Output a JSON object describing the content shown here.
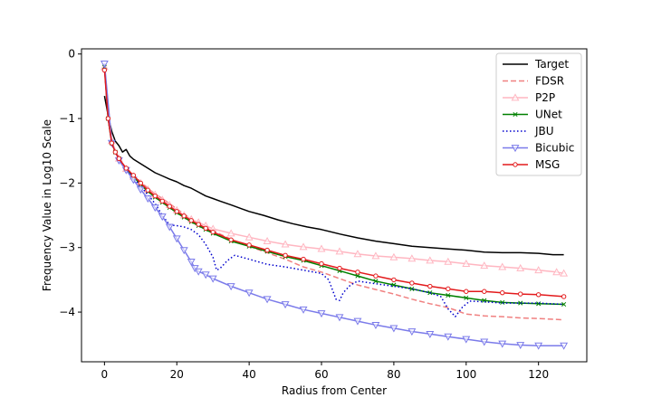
{
  "chart_data": {
    "type": "line",
    "title": "",
    "xlabel": "Radius from Center",
    "ylabel": "Frequency Value in Log10 Scale",
    "xlim": [
      -6.35,
      133.35
    ],
    "ylim": [
      -4.77,
      0.08
    ],
    "xticks": [
      0,
      20,
      40,
      60,
      80,
      100,
      120
    ],
    "xtick_labels": [
      "0",
      "20",
      "40",
      "60",
      "80",
      "100",
      "120"
    ],
    "yticks": [
      0,
      -1,
      -2,
      -3,
      -4
    ],
    "ytick_labels": [
      "0",
      "−1",
      "−2",
      "−3",
      "−4"
    ],
    "grid": false,
    "legend": "top-right",
    "series": [
      {
        "name": "Target",
        "color": "#000000",
        "style": "solid",
        "marker": "none",
        "points": [
          [
            0,
            -0.65
          ],
          [
            1,
            -0.95
          ],
          [
            2,
            -1.2
          ],
          [
            3,
            -1.35
          ],
          [
            4,
            -1.42
          ],
          [
            5,
            -1.52
          ],
          [
            6,
            -1.48
          ],
          [
            7,
            -1.58
          ],
          [
            8,
            -1.63
          ],
          [
            10,
            -1.7
          ],
          [
            12,
            -1.77
          ],
          [
            14,
            -1.84
          ],
          [
            16,
            -1.89
          ],
          [
            18,
            -1.94
          ],
          [
            20,
            -1.98
          ],
          [
            22,
            -2.04
          ],
          [
            24,
            -2.08
          ],
          [
            26,
            -2.14
          ],
          [
            28,
            -2.2
          ],
          [
            30,
            -2.24
          ],
          [
            32,
            -2.28
          ],
          [
            35,
            -2.34
          ],
          [
            38,
            -2.4
          ],
          [
            40,
            -2.44
          ],
          [
            44,
            -2.5
          ],
          [
            48,
            -2.57
          ],
          [
            52,
            -2.63
          ],
          [
            56,
            -2.68
          ],
          [
            60,
            -2.72
          ],
          [
            65,
            -2.79
          ],
          [
            70,
            -2.85
          ],
          [
            75,
            -2.9
          ],
          [
            80,
            -2.94
          ],
          [
            85,
            -2.98
          ],
          [
            90,
            -3.0
          ],
          [
            95,
            -3.02
          ],
          [
            100,
            -3.04
          ],
          [
            105,
            -3.07
          ],
          [
            110,
            -3.08
          ],
          [
            115,
            -3.08
          ],
          [
            120,
            -3.09
          ],
          [
            124,
            -3.11
          ],
          [
            127,
            -3.11
          ]
        ]
      },
      {
        "name": "FDSR",
        "color": "#f08080",
        "style": "dashed",
        "marker": "none",
        "points": [
          [
            0,
            -0.2
          ],
          [
            1,
            -0.95
          ],
          [
            2,
            -1.35
          ],
          [
            3,
            -1.5
          ],
          [
            4,
            -1.6
          ],
          [
            5,
            -1.72
          ],
          [
            6,
            -1.75
          ],
          [
            7,
            -1.82
          ],
          [
            8,
            -1.88
          ],
          [
            10,
            -1.98
          ],
          [
            12,
            -2.08
          ],
          [
            14,
            -2.17
          ],
          [
            16,
            -2.24
          ],
          [
            18,
            -2.32
          ],
          [
            20,
            -2.4
          ],
          [
            22,
            -2.48
          ],
          [
            24,
            -2.56
          ],
          [
            26,
            -2.62
          ],
          [
            28,
            -2.68
          ],
          [
            30,
            -2.74
          ],
          [
            35,
            -2.87
          ],
          [
            40,
            -2.98
          ],
          [
            45,
            -3.08
          ],
          [
            50,
            -3.18
          ],
          [
            55,
            -3.3
          ],
          [
            60,
            -3.38
          ],
          [
            65,
            -3.48
          ],
          [
            70,
            -3.58
          ],
          [
            75,
            -3.65
          ],
          [
            80,
            -3.72
          ],
          [
            85,
            -3.8
          ],
          [
            90,
            -3.87
          ],
          [
            95,
            -3.93
          ],
          [
            100,
            -4.03
          ],
          [
            105,
            -4.06
          ],
          [
            110,
            -4.07
          ],
          [
            115,
            -4.09
          ],
          [
            120,
            -4.1
          ],
          [
            127,
            -4.12
          ]
        ]
      },
      {
        "name": "P2P",
        "color": "#ffb6c1",
        "style": "solid",
        "marker": "triangle-up",
        "points": [
          [
            0,
            -0.2
          ],
          [
            2,
            -1.35
          ],
          [
            4,
            -1.62
          ],
          [
            6,
            -1.78
          ],
          [
            8,
            -1.9
          ],
          [
            10,
            -2.0
          ],
          [
            12,
            -2.1
          ],
          [
            14,
            -2.18
          ],
          [
            16,
            -2.26
          ],
          [
            18,
            -2.34
          ],
          [
            20,
            -2.42
          ],
          [
            22,
            -2.5
          ],
          [
            24,
            -2.56
          ],
          [
            26,
            -2.61
          ],
          [
            28,
            -2.66
          ],
          [
            30,
            -2.71
          ],
          [
            35,
            -2.78
          ],
          [
            40,
            -2.84
          ],
          [
            45,
            -2.9
          ],
          [
            50,
            -2.95
          ],
          [
            55,
            -2.99
          ],
          [
            60,
            -3.02
          ],
          [
            65,
            -3.06
          ],
          [
            70,
            -3.1
          ],
          [
            75,
            -3.13
          ],
          [
            80,
            -3.15
          ],
          [
            85,
            -3.17
          ],
          [
            90,
            -3.2
          ],
          [
            95,
            -3.22
          ],
          [
            100,
            -3.25
          ],
          [
            105,
            -3.28
          ],
          [
            110,
            -3.3
          ],
          [
            115,
            -3.32
          ],
          [
            120,
            -3.35
          ],
          [
            125,
            -3.38
          ],
          [
            127,
            -3.4
          ]
        ]
      },
      {
        "name": "UNet",
        "color": "#008000",
        "style": "solid",
        "marker": "x",
        "points": [
          [
            0,
            -0.2
          ],
          [
            1,
            -1.0
          ],
          [
            2,
            -1.38
          ],
          [
            3,
            -1.52
          ],
          [
            4,
            -1.62
          ],
          [
            6,
            -1.78
          ],
          [
            8,
            -1.9
          ],
          [
            10,
            -2.02
          ],
          [
            12,
            -2.13
          ],
          [
            14,
            -2.22
          ],
          [
            16,
            -2.3
          ],
          [
            18,
            -2.38
          ],
          [
            20,
            -2.46
          ],
          [
            22,
            -2.53
          ],
          [
            24,
            -2.6
          ],
          [
            26,
            -2.66
          ],
          [
            28,
            -2.72
          ],
          [
            30,
            -2.78
          ],
          [
            35,
            -2.9
          ],
          [
            40,
            -2.98
          ],
          [
            45,
            -3.06
          ],
          [
            50,
            -3.14
          ],
          [
            55,
            -3.2
          ],
          [
            60,
            -3.28
          ],
          [
            65,
            -3.36
          ],
          [
            70,
            -3.44
          ],
          [
            75,
            -3.52
          ],
          [
            80,
            -3.58
          ],
          [
            85,
            -3.64
          ],
          [
            90,
            -3.7
          ],
          [
            95,
            -3.74
          ],
          [
            100,
            -3.78
          ],
          [
            105,
            -3.82
          ],
          [
            110,
            -3.85
          ],
          [
            115,
            -3.86
          ],
          [
            120,
            -3.87
          ],
          [
            127,
            -3.88
          ]
        ]
      },
      {
        "name": "JBU",
        "color": "#0000cd",
        "style": "dotted",
        "marker": "none",
        "points": [
          [
            0,
            -0.2
          ],
          [
            1,
            -0.98
          ],
          [
            2,
            -1.4
          ],
          [
            4,
            -1.62
          ],
          [
            6,
            -1.78
          ],
          [
            8,
            -1.92
          ],
          [
            10,
            -2.05
          ],
          [
            12,
            -2.18
          ],
          [
            14,
            -2.32
          ],
          [
            16,
            -2.5
          ],
          [
            18,
            -2.65
          ],
          [
            20,
            -2.66
          ],
          [
            22,
            -2.68
          ],
          [
            24,
            -2.72
          ],
          [
            26,
            -2.8
          ],
          [
            28,
            -2.95
          ],
          [
            30,
            -3.15
          ],
          [
            31,
            -3.35
          ],
          [
            32,
            -3.32
          ],
          [
            34,
            -3.2
          ],
          [
            36,
            -3.12
          ],
          [
            40,
            -3.18
          ],
          [
            45,
            -3.26
          ],
          [
            50,
            -3.3
          ],
          [
            55,
            -3.35
          ],
          [
            60,
            -3.4
          ],
          [
            62,
            -3.5
          ],
          [
            64,
            -3.8
          ],
          [
            65,
            -3.82
          ],
          [
            66,
            -3.7
          ],
          [
            68,
            -3.58
          ],
          [
            70,
            -3.52
          ],
          [
            75,
            -3.56
          ],
          [
            80,
            -3.6
          ],
          [
            85,
            -3.64
          ],
          [
            90,
            -3.7
          ],
          [
            93,
            -3.76
          ],
          [
            95,
            -3.95
          ],
          [
            97,
            -4.07
          ],
          [
            99,
            -3.92
          ],
          [
            101,
            -3.83
          ],
          [
            105,
            -3.84
          ],
          [
            110,
            -3.86
          ],
          [
            115,
            -3.86
          ],
          [
            120,
            -3.86
          ],
          [
            127,
            -3.88
          ]
        ]
      },
      {
        "name": "Bicubic",
        "color": "#7b7bea",
        "style": "solid",
        "marker": "triangle-down",
        "points": [
          [
            0,
            -0.15
          ],
          [
            2,
            -1.38
          ],
          [
            4,
            -1.65
          ],
          [
            6,
            -1.8
          ],
          [
            8,
            -1.95
          ],
          [
            10,
            -2.1
          ],
          [
            12,
            -2.24
          ],
          [
            14,
            -2.38
          ],
          [
            16,
            -2.52
          ],
          [
            18,
            -2.68
          ],
          [
            20,
            -2.86
          ],
          [
            22,
            -3.04
          ],
          [
            24,
            -3.22
          ],
          [
            25,
            -3.32
          ],
          [
            26,
            -3.37
          ],
          [
            28,
            -3.42
          ],
          [
            30,
            -3.48
          ],
          [
            35,
            -3.6
          ],
          [
            40,
            -3.7
          ],
          [
            45,
            -3.8
          ],
          [
            50,
            -3.88
          ],
          [
            55,
            -3.96
          ],
          [
            60,
            -4.02
          ],
          [
            65,
            -4.08
          ],
          [
            70,
            -4.14
          ],
          [
            75,
            -4.2
          ],
          [
            80,
            -4.25
          ],
          [
            85,
            -4.3
          ],
          [
            90,
            -4.34
          ],
          [
            95,
            -4.38
          ],
          [
            100,
            -4.42
          ],
          [
            105,
            -4.46
          ],
          [
            110,
            -4.49
          ],
          [
            115,
            -4.51
          ],
          [
            120,
            -4.52
          ],
          [
            127,
            -4.52
          ]
        ]
      },
      {
        "name": "MSG",
        "color": "#e31a1c",
        "style": "solid",
        "marker": "circle",
        "points": [
          [
            0,
            -0.25
          ],
          [
            1,
            -1.0
          ],
          [
            2,
            -1.38
          ],
          [
            3,
            -1.52
          ],
          [
            4,
            -1.62
          ],
          [
            6,
            -1.77
          ],
          [
            8,
            -1.88
          ],
          [
            10,
            -2.0
          ],
          [
            12,
            -2.11
          ],
          [
            14,
            -2.2
          ],
          [
            16,
            -2.28
          ],
          [
            18,
            -2.36
          ],
          [
            20,
            -2.44
          ],
          [
            22,
            -2.51
          ],
          [
            24,
            -2.58
          ],
          [
            26,
            -2.64
          ],
          [
            28,
            -2.7
          ],
          [
            30,
            -2.76
          ],
          [
            35,
            -2.88
          ],
          [
            40,
            -2.96
          ],
          [
            45,
            -3.04
          ],
          [
            50,
            -3.12
          ],
          [
            55,
            -3.18
          ],
          [
            60,
            -3.25
          ],
          [
            65,
            -3.32
          ],
          [
            70,
            -3.38
          ],
          [
            75,
            -3.44
          ],
          [
            80,
            -3.5
          ],
          [
            85,
            -3.55
          ],
          [
            90,
            -3.6
          ],
          [
            95,
            -3.64
          ],
          [
            100,
            -3.68
          ],
          [
            105,
            -3.68
          ],
          [
            110,
            -3.7
          ],
          [
            115,
            -3.72
          ],
          [
            120,
            -3.73
          ],
          [
            127,
            -3.76
          ]
        ]
      }
    ]
  }
}
